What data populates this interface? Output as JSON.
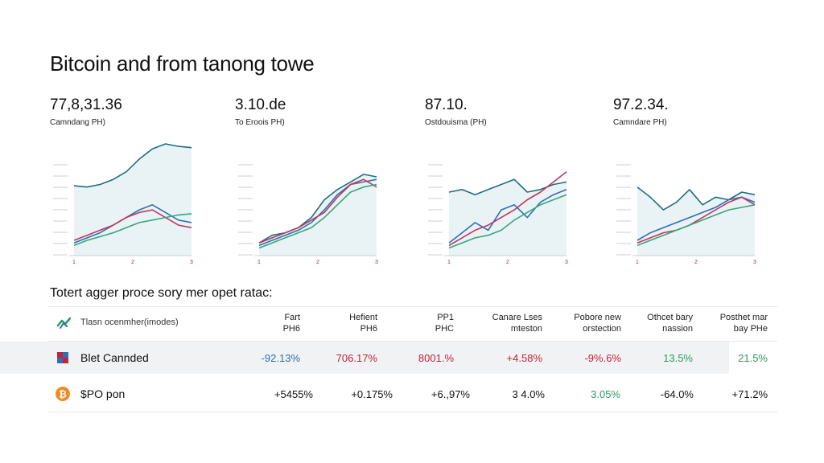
{
  "title": "Bitcoin and from tanong towe",
  "panels": [
    {
      "value": "77,8,31.36",
      "subtitle": "Camndang PH)"
    },
    {
      "value": "3.10.de",
      "subtitle": "To Eroois PH)"
    },
    {
      "value": "87.10.",
      "subtitle": "Ostdouisma (PH)"
    },
    {
      "value": "97.2.34.",
      "subtitle": "Camndare PH)"
    }
  ],
  "chart_data": [
    {
      "type": "line",
      "x_ticks": [
        "1",
        "2",
        "3"
      ],
      "series": [
        {
          "color": "#1f6f7e",
          "values": [
            55,
            54,
            56,
            60,
            66,
            76,
            84,
            88,
            86,
            85
          ]
        },
        {
          "color": "#2f6fb6",
          "values": [
            10,
            14,
            18,
            24,
            30,
            36,
            40,
            34,
            28,
            26
          ]
        },
        {
          "color": "#c2375a",
          "values": [
            12,
            16,
            20,
            24,
            30,
            34,
            36,
            30,
            24,
            22
          ]
        },
        {
          "color": "#3aa579",
          "values": [
            8,
            12,
            15,
            18,
            22,
            26,
            28,
            30,
            32,
            33
          ]
        }
      ]
    },
    {
      "type": "line",
      "x_ticks": [
        "1",
        "2",
        "3"
      ],
      "series": [
        {
          "color": "#1f6f7e",
          "values": [
            10,
            16,
            18,
            22,
            30,
            44,
            52,
            58,
            64,
            62
          ]
        },
        {
          "color": "#2f6fb6",
          "values": [
            8,
            12,
            16,
            20,
            26,
            36,
            48,
            56,
            58,
            60
          ]
        },
        {
          "color": "#c2375a",
          "values": [
            10,
            14,
            18,
            22,
            28,
            34,
            46,
            56,
            60,
            54
          ]
        },
        {
          "color": "#3aa579",
          "values": [
            6,
            10,
            14,
            18,
            22,
            30,
            40,
            50,
            54,
            56
          ]
        }
      ]
    },
    {
      "type": "line",
      "x_ticks": [
        "1",
        "2",
        "3"
      ],
      "series": [
        {
          "color": "#1f6f7e",
          "values": [
            50,
            52,
            48,
            52,
            56,
            60,
            50,
            52,
            56,
            58
          ]
        },
        {
          "color": "#2f6fb6",
          "values": [
            10,
            18,
            26,
            20,
            36,
            40,
            30,
            42,
            48,
            52
          ]
        },
        {
          "color": "#c2375a",
          "values": [
            8,
            14,
            20,
            24,
            30,
            36,
            44,
            50,
            58,
            66
          ]
        },
        {
          "color": "#3aa579",
          "values": [
            6,
            10,
            14,
            16,
            20,
            28,
            34,
            40,
            44,
            48
          ]
        }
      ]
    },
    {
      "type": "line",
      "x_ticks": [
        "1",
        "2",
        "3"
      ],
      "series": [
        {
          "color": "#1f6f7e",
          "values": [
            54,
            46,
            36,
            42,
            52,
            40,
            46,
            44,
            50,
            48
          ]
        },
        {
          "color": "#2f6fb6",
          "values": [
            12,
            18,
            22,
            26,
            30,
            34,
            38,
            44,
            46,
            42
          ]
        },
        {
          "color": "#c2375a",
          "values": [
            10,
            14,
            18,
            20,
            24,
            30,
            36,
            42,
            46,
            40
          ]
        },
        {
          "color": "#3aa579",
          "values": [
            8,
            12,
            16,
            20,
            24,
            28,
            32,
            36,
            38,
            40
          ]
        }
      ]
    }
  ],
  "table": {
    "title": "Totert agger proce sory mer opet ratac:",
    "header_first": "Tlasn ocenmher(imodes)",
    "columns": [
      {
        "l1": "Fart",
        "l2": "PH6"
      },
      {
        "l1": "Hefient",
        "l2": "PH6"
      },
      {
        "l1": "PP1",
        "l2": "PHC"
      },
      {
        "l1": "Canare Lses",
        "l2": "mteston"
      },
      {
        "l1": "Pobore new",
        "l2": "orstection"
      },
      {
        "l1": "Othcet bary",
        "l2": "nassion"
      },
      {
        "l1": "Posthet mar",
        "l2": "bay PHe"
      }
    ],
    "rows": [
      {
        "name": "Blet Cannded",
        "values": [
          "-92.13%",
          "706.17%",
          "8001.%",
          "+4.58%",
          "-9%.6%",
          "13.5%",
          "21.5%"
        ],
        "colors": [
          "#2f6fb6",
          "#c0233a",
          "#c0233a",
          "#c0233a",
          "#c0233a",
          "#2b9a63",
          "#2b9a63"
        ]
      },
      {
        "name": "$PO pon",
        "values": [
          "+5455%",
          "+0.175%",
          "+6.,97%",
          "3 4.0%",
          "3.05%",
          "-64.0%",
          "+71.2%"
        ],
        "colors": [
          "#111111",
          "#111111",
          "#111111",
          "#111111",
          "#2b9a63",
          "#111111",
          "#111111"
        ]
      }
    ]
  }
}
